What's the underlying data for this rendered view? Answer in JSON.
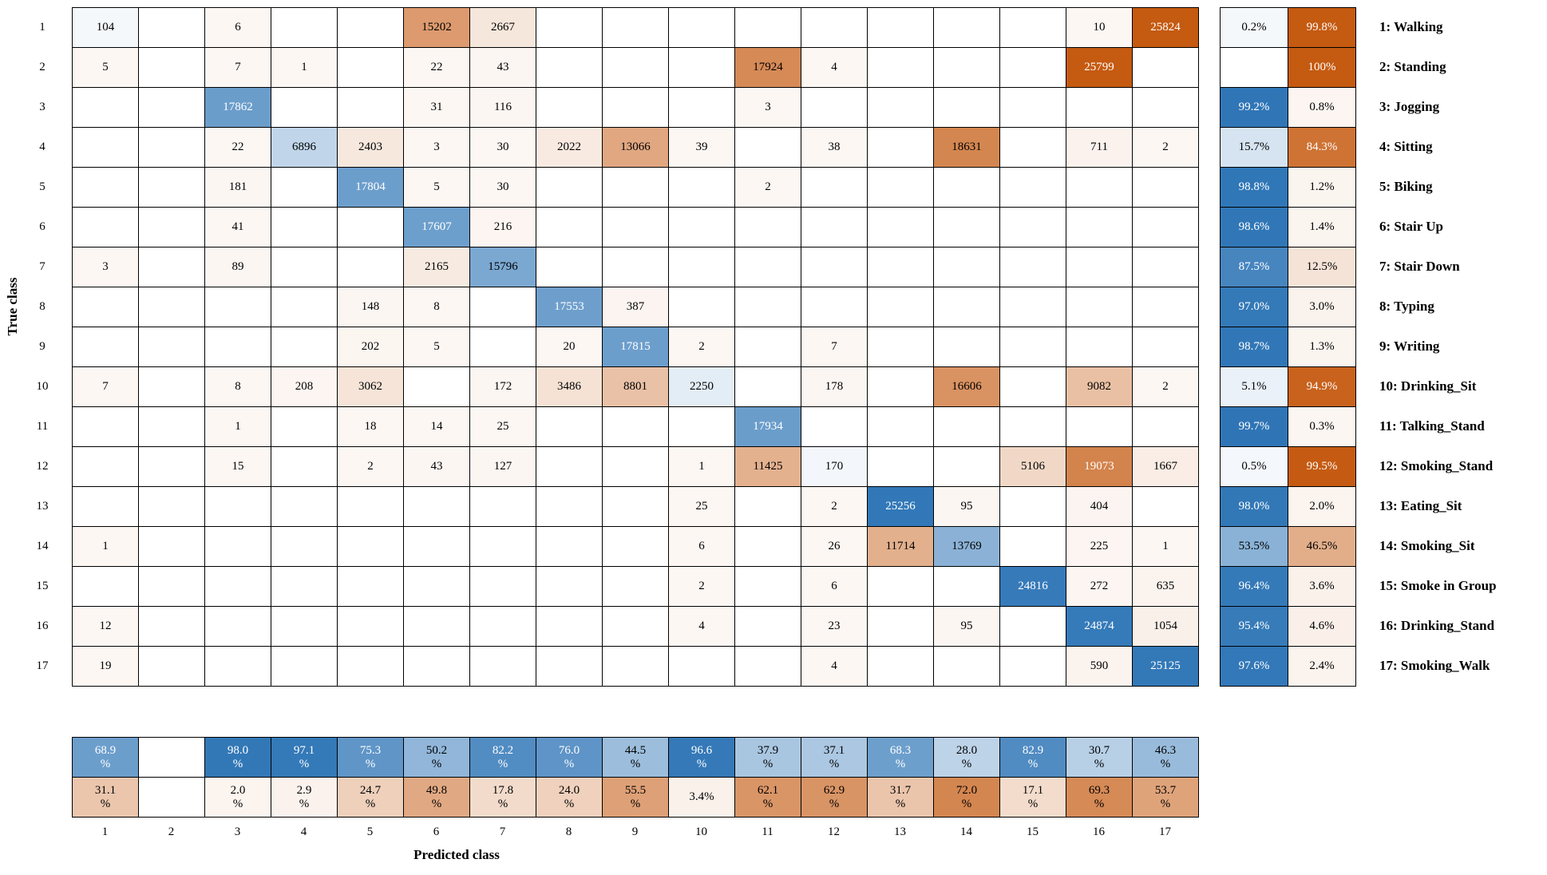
{
  "colors": {
    "diagonal_blue": "#2E75B6",
    "off_diagonal_orange": "#C55A11",
    "grid_line": "#000000",
    "background": "#FFFFFF"
  },
  "chart_data": {
    "type": "heatmap",
    "xlabel": "Predicted class",
    "ylabel": "True class",
    "tick_labels": [
      "1",
      "2",
      "3",
      "4",
      "5",
      "6",
      "7",
      "8",
      "9",
      "10",
      "11",
      "12",
      "13",
      "14",
      "15",
      "16",
      "17"
    ],
    "classes": [
      "Walking",
      "Standing",
      "Jogging",
      "Sitting",
      "Biking",
      "Stair Up",
      "Stair Down",
      "Typing",
      "Writing",
      "Drinking_Sit",
      "Talking_Stand",
      "Smoking_Stand",
      "Eating_Sit",
      "Smoking_Sit",
      "Smoke in Group",
      "Drinking_Stand",
      "Smoking_Walk"
    ],
    "legend": [
      "1: Walking",
      "2: Standing",
      "3: Jogging",
      "4: Sitting",
      "5: Biking",
      "6: Stair Up",
      "7: Stair Down",
      "8: Typing",
      "9: Writing",
      "10: Drinking_Sit",
      "11: Talking_Stand",
      "12: Smoking_Stand",
      "13: Eating_Sit",
      "14: Smoking_Sit",
      "15: Smoke in Group",
      "16: Drinking_Stand",
      "17: Smoking_Walk"
    ],
    "matrix": [
      [
        104,
        null,
        6,
        null,
        null,
        15202,
        2667,
        null,
        null,
        null,
        null,
        null,
        null,
        null,
        null,
        10,
        25824
      ],
      [
        5,
        null,
        7,
        1,
        null,
        22,
        43,
        null,
        null,
        null,
        17924,
        4,
        null,
        null,
        null,
        25799,
        null
      ],
      [
        null,
        null,
        17862,
        null,
        null,
        31,
        116,
        null,
        null,
        null,
        3,
        null,
        null,
        null,
        null,
        null,
        null
      ],
      [
        null,
        null,
        22,
        6896,
        2403,
        3,
        30,
        2022,
        13066,
        39,
        null,
        38,
        null,
        18631,
        null,
        711,
        2
      ],
      [
        null,
        null,
        181,
        null,
        17804,
        5,
        30,
        null,
        null,
        null,
        2,
        null,
        null,
        null,
        null,
        null,
        null
      ],
      [
        null,
        null,
        41,
        null,
        null,
        17607,
        216,
        null,
        null,
        null,
        null,
        null,
        null,
        null,
        null,
        null,
        null
      ],
      [
        3,
        null,
        89,
        null,
        null,
        2165,
        15796,
        null,
        null,
        null,
        null,
        null,
        null,
        null,
        null,
        null,
        null
      ],
      [
        null,
        null,
        null,
        null,
        148,
        8,
        null,
        17553,
        387,
        null,
        null,
        null,
        null,
        null,
        null,
        null,
        null
      ],
      [
        null,
        null,
        null,
        null,
        202,
        5,
        null,
        20,
        17815,
        2,
        null,
        7,
        null,
        null,
        null,
        null,
        null
      ],
      [
        7,
        null,
        8,
        208,
        3062,
        null,
        172,
        3486,
        8801,
        2250,
        null,
        178,
        null,
        16606,
        null,
        9082,
        2
      ],
      [
        null,
        null,
        1,
        null,
        18,
        14,
        25,
        null,
        null,
        null,
        17934,
        null,
        null,
        null,
        null,
        null,
        null
      ],
      [
        null,
        null,
        15,
        null,
        2,
        43,
        127,
        null,
        null,
        1,
        11425,
        170,
        null,
        null,
        5106,
        19073,
        1667
      ],
      [
        null,
        null,
        null,
        null,
        null,
        null,
        null,
        null,
        null,
        25,
        null,
        2,
        25256,
        95,
        null,
        404,
        null
      ],
      [
        1,
        null,
        null,
        null,
        null,
        null,
        null,
        null,
        null,
        6,
        null,
        26,
        11714,
        13769,
        null,
        225,
        1
      ],
      [
        null,
        null,
        null,
        null,
        null,
        null,
        null,
        null,
        null,
        2,
        null,
        6,
        null,
        null,
        24816,
        272,
        635
      ],
      [
        12,
        null,
        null,
        null,
        null,
        null,
        null,
        null,
        null,
        4,
        null,
        23,
        null,
        95,
        null,
        24874,
        1054
      ],
      [
        19,
        null,
        null,
        null,
        null,
        null,
        null,
        null,
        null,
        null,
        null,
        4,
        null,
        null,
        null,
        590,
        25125
      ]
    ],
    "row_summary": {
      "correct": [
        "0.2%",
        "",
        "99.2%",
        "15.7%",
        "98.8%",
        "98.6%",
        "87.5%",
        "97.0%",
        "98.7%",
        "5.1%",
        "99.7%",
        "0.5%",
        "98.0%",
        "53.5%",
        "96.4%",
        "95.4%",
        "97.6%"
      ],
      "incorrect": [
        "99.8%",
        "100%",
        "0.8%",
        "84.3%",
        "1.2%",
        "1.4%",
        "12.5%",
        "3.0%",
        "1.3%",
        "94.9%",
        "0.3%",
        "99.5%",
        "2.0%",
        "46.5%",
        "3.6%",
        "4.6%",
        "2.4%"
      ]
    },
    "col_summary": {
      "correct": [
        "68.9\n%",
        "",
        "98.0\n%",
        "97.1\n%",
        "75.3\n%",
        "50.2\n%",
        "82.2\n%",
        "76.0\n%",
        "44.5\n%",
        "96.6\n%",
        "37.9\n%",
        "37.1\n%",
        "68.3\n%",
        "28.0\n%",
        "82.9\n%",
        "30.7\n%",
        "46.3\n%"
      ],
      "incorrect": [
        "31.1\n%",
        "",
        "2.0\n%",
        "2.9\n%",
        "24.7\n%",
        "49.8\n%",
        "17.8\n%",
        "24.0\n%",
        "55.5\n%",
        "3.4%",
        "62.1\n%",
        "62.9\n%",
        "31.7\n%",
        "72.0\n%",
        "17.1\n%",
        "69.3\n%",
        "53.7\n%"
      ]
    }
  }
}
